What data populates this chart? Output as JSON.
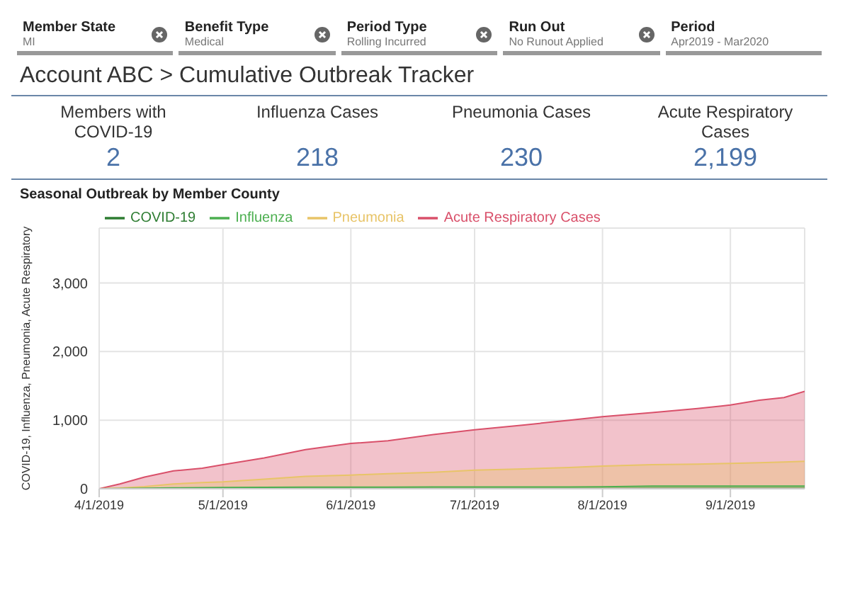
{
  "chart_data": [
    {
      "type": "other",
      "title": "Account ABC > Cumulative Outbreak Tracker",
      "categories": [
        "Members with COVID-19",
        "Influenza Cases",
        "Pneumonia Cases",
        "Acute Respiratory Cases"
      ],
      "value_labels": [
        "2",
        "218",
        "230",
        "2,199"
      ],
      "annotations": [
        "Member State",
        "MI",
        "Benefit Type",
        "Medical",
        "Period Type",
        "Rolling Incurred",
        "Run Out",
        "No Runout Applied",
        "Period",
        "Apr2019 - Mar2020"
      ]
    },
    {
      "type": "area",
      "title": "Seasonal Outbreak by Member County",
      "ylabel": "COVID-19, Influenza, Pneumonia, Acute Respiratory",
      "x": [
        "2019-04-01",
        "2019-04-06",
        "2019-04-12",
        "2019-04-19",
        "2019-04-26",
        "2019-05-01",
        "2019-05-11",
        "2019-05-21",
        "2019-06-01",
        "2019-06-10",
        "2019-06-21",
        "2019-07-01",
        "2019-07-13",
        "2019-07-24",
        "2019-08-01",
        "2019-08-13",
        "2019-08-24",
        "2019-09-01",
        "2019-09-08",
        "2019-09-14",
        "2019-09-19"
      ],
      "series": [
        {
          "name": "COVID-19",
          "color": "#2e7d32",
          "values": [
            0,
            0,
            0,
            0,
            0,
            0,
            0,
            0,
            0,
            0,
            0,
            0,
            0,
            0,
            0,
            2,
            2,
            2,
            2,
            2,
            2
          ]
        },
        {
          "name": "Influenza",
          "color": "#4caf50",
          "values": [
            0,
            3,
            8,
            12,
            15,
            17,
            20,
            22,
            23,
            24,
            25,
            25,
            26,
            27,
            28,
            40,
            40,
            40,
            40,
            40,
            40
          ]
        },
        {
          "name": "Pneumonia",
          "color": "#e8c468",
          "values": [
            0,
            10,
            30,
            70,
            90,
            100,
            140,
            180,
            200,
            220,
            240,
            270,
            290,
            310,
            330,
            350,
            360,
            370,
            380,
            390,
            400
          ]
        },
        {
          "name": "Acute Respiratory Cases",
          "color": "#d9506a",
          "values": [
            0,
            70,
            170,
            260,
            300,
            350,
            450,
            570,
            660,
            700,
            790,
            860,
            930,
            1000,
            1050,
            1110,
            1170,
            1220,
            1290,
            1330,
            1420
          ]
        }
      ],
      "xlim": [
        "2019-04-01",
        "2019-09-19"
      ],
      "xticks": [
        {
          "value": "2019-04-01",
          "label": "4/1/2019"
        },
        {
          "value": "2019-05-01",
          "label": "5/1/2019"
        },
        {
          "value": "2019-06-01",
          "label": "6/1/2019"
        },
        {
          "value": "2019-07-01",
          "label": "7/1/2019"
        },
        {
          "value": "2019-08-01",
          "label": "8/1/2019"
        },
        {
          "value": "2019-09-01",
          "label": "9/1/2019"
        }
      ],
      "ylim": [
        0,
        3800
      ],
      "yticks": [
        0,
        {
          "value": 1000,
          "label": "1,000"
        },
        {
          "value": 2000,
          "label": "2,000"
        },
        {
          "value": 3000,
          "label": "3,000"
        }
      ],
      "grid": true,
      "legend": "top left"
    }
  ]
}
